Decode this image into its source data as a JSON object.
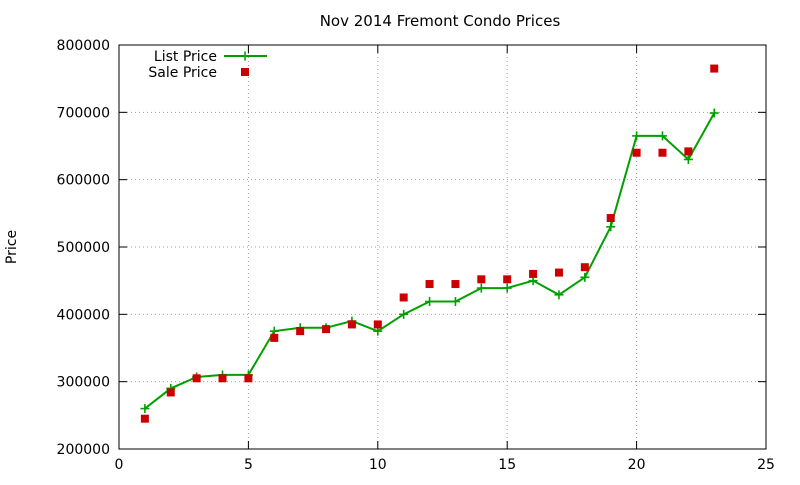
{
  "chart_data": {
    "type": "line",
    "title": "Nov 2014 Fremont Condo Prices",
    "xlabel": "",
    "ylabel": "Price",
    "xlim": [
      0,
      25
    ],
    "ylim": [
      200000,
      800000
    ],
    "xticks": [
      0,
      5,
      10,
      15,
      20,
      25
    ],
    "yticks": [
      200000,
      300000,
      400000,
      500000,
      600000,
      700000,
      800000
    ],
    "xtick_labels": [
      "0",
      "5",
      "10",
      "15",
      "20",
      "25"
    ],
    "ytick_labels": [
      "200000",
      "300000",
      "400000",
      "500000",
      "600000",
      "700000",
      "800000"
    ],
    "grid": true,
    "legend_position": "top-left",
    "series": [
      {
        "name": "List Price",
        "style": "line-with-plus-markers",
        "color": "#00a000",
        "x": [
          1,
          2,
          3,
          4,
          5,
          6,
          7,
          8,
          9,
          10,
          11,
          12,
          13,
          14,
          15,
          16,
          17,
          18,
          19,
          20,
          21,
          22,
          23
        ],
        "y": [
          260000,
          290000,
          307000,
          310000,
          310000,
          375000,
          380000,
          380000,
          390000,
          375000,
          400000,
          419000,
          419000,
          439000,
          439000,
          450000,
          429000,
          455000,
          530000,
          665000,
          665000,
          630000,
          699000
        ]
      },
      {
        "name": "Sale Price",
        "style": "square-markers",
        "color": "#cc0000",
        "x": [
          1,
          2,
          3,
          4,
          5,
          6,
          7,
          8,
          9,
          10,
          11,
          12,
          13,
          14,
          15,
          16,
          17,
          18,
          19,
          20,
          21,
          22,
          23
        ],
        "y": [
          245000,
          284000,
          305000,
          305000,
          305000,
          365000,
          375000,
          378000,
          385000,
          385000,
          425000,
          445000,
          445000,
          452000,
          452000,
          460000,
          462000,
          470000,
          543000,
          640000,
          640000,
          642000,
          765000
        ]
      }
    ]
  }
}
